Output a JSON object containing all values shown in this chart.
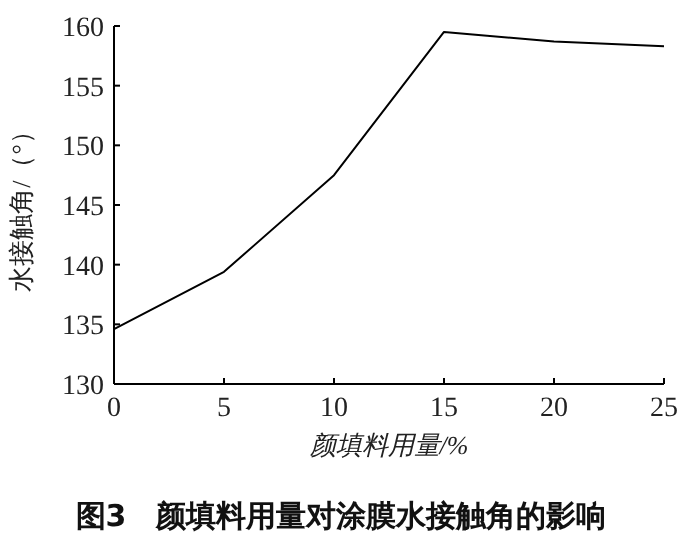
{
  "chart_data": {
    "type": "line",
    "title": "图3　颜填料用量对涂膜水接触角的影响",
    "xlabel": "颜填料用量/%",
    "ylabel": "水接触角/（°）",
    "x": [
      0,
      5,
      10,
      15,
      20,
      25
    ],
    "series": [
      {
        "color": "#000000",
        "values": [
          134.6,
          139.4,
          147.5,
          159.5,
          158.7,
          158.3
        ]
      }
    ],
    "xlim": [
      0,
      25
    ],
    "xticks": [
      0,
      5,
      10,
      15,
      20,
      25
    ],
    "ylim": [
      130,
      160
    ],
    "yticks": [
      130,
      135,
      140,
      145,
      150,
      155,
      160
    ],
    "grid": false,
    "marker": "none",
    "line_style": "solid"
  }
}
